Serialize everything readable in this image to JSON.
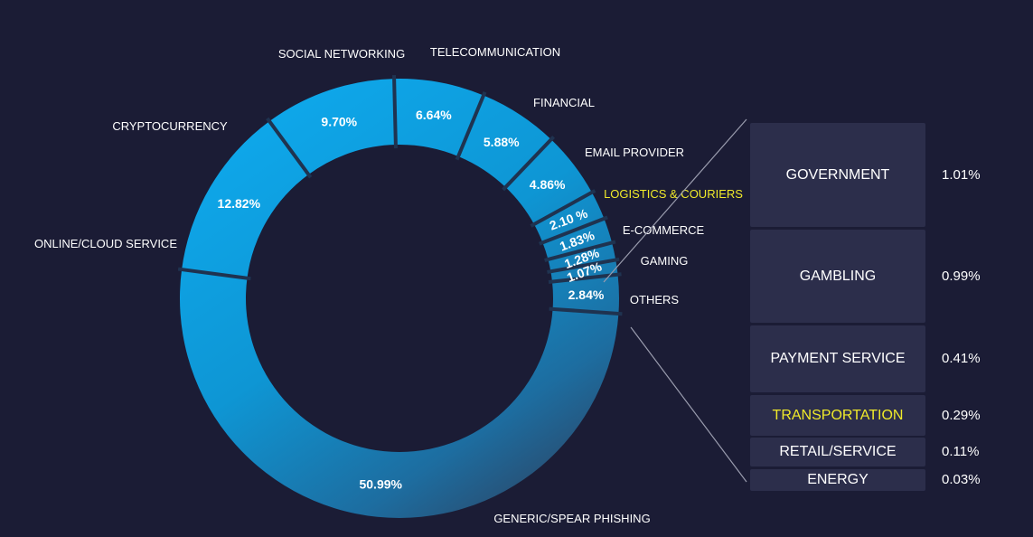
{
  "chart_data": {
    "type": "pie",
    "donut": true,
    "slices": [
      {
        "label": "GENERIC/SPEAR PHISHING",
        "value": 50.99,
        "value_label": "50.99%"
      },
      {
        "label": "ONLINE/CLOUD SERVICE",
        "value": 12.82,
        "value_label": "12.82%"
      },
      {
        "label": "CRYPTOCURRENCY",
        "value": 9.7,
        "value_label": "9.70%"
      },
      {
        "label": "SOCIAL NETWORKING",
        "value": 6.64,
        "value_label": "6.64%"
      },
      {
        "label": "TELECOMMUNICATION",
        "value": 5.88,
        "value_label": "5.88%"
      },
      {
        "label": "FINANCIAL",
        "value": 4.86,
        "value_label": "4.86%"
      },
      {
        "label": "EMAIL PROVIDER",
        "value": 2.1,
        "value_label": "2.10 %"
      },
      {
        "label": "LOGISTICS & COURIERS",
        "value": 1.83,
        "value_label": "1.83%",
        "highlight": true
      },
      {
        "label": "E-COMMERCE",
        "value": 1.28,
        "value_label": "1.28%"
      },
      {
        "label": "GAMING",
        "value": 1.07,
        "value_label": "1.07%"
      },
      {
        "label": "OTHERS",
        "value": 2.84,
        "value_label": "2.84%"
      }
    ],
    "others_breakdown": [
      {
        "label": "GOVERNMENT",
        "value": 1.01,
        "value_label": "1.01%"
      },
      {
        "label": "GAMBLING",
        "value": 0.99,
        "value_label": "0.99%"
      },
      {
        "label": "PAYMENT SERVICE",
        "value": 0.41,
        "value_label": "0.41%"
      },
      {
        "label": "TRANSPORTATION",
        "value": 0.29,
        "value_label": "0.29%",
        "highlight": true
      },
      {
        "label": "RETAIL/SERVICE",
        "value": 0.11,
        "value_label": "0.11%"
      },
      {
        "label": "ENERGY",
        "value": 0.03,
        "value_label": "0.03%"
      }
    ],
    "colors": {
      "background": "#1b1c35",
      "ring_bright": "#0ea7ea",
      "ring_dark": "#2b4a6e",
      "separator": "#1f3350",
      "highlight_text": "#f0ea2a",
      "box_fill": "#2c2e4b"
    }
  }
}
